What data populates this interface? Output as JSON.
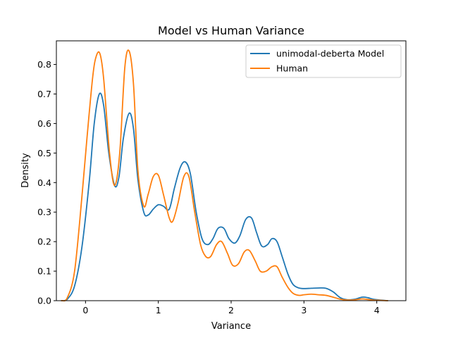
{
  "chart_data": {
    "type": "line",
    "title": "Model vs Human Variance",
    "xlabel": "Variance",
    "ylabel": "Density",
    "xlim": [
      -0.4,
      4.4
    ],
    "ylim": [
      0.0,
      0.88
    ],
    "x_ticks": [
      0,
      1,
      2,
      3,
      4
    ],
    "y_ticks": [
      0.0,
      0.1,
      0.2,
      0.3,
      0.4,
      0.5,
      0.6,
      0.7,
      0.8
    ],
    "x_tick_labels": [
      "0",
      "1",
      "2",
      "3",
      "4"
    ],
    "y_tick_labels": [
      "0.0",
      "0.1",
      "0.2",
      "0.3",
      "0.4",
      "0.5",
      "0.6",
      "0.7",
      "0.8"
    ],
    "grid": false,
    "legend_position": "top-right",
    "series": [
      {
        "name": "unimodal-deberta Model",
        "color": "#1f77b4",
        "x": [
          -0.33,
          -0.25,
          -0.15,
          -0.05,
          0.05,
          0.12,
          0.19,
          0.25,
          0.32,
          0.4,
          0.46,
          0.52,
          0.6,
          0.66,
          0.72,
          0.8,
          0.86,
          0.93,
          1.0,
          1.07,
          1.15,
          1.22,
          1.3,
          1.37,
          1.44,
          1.52,
          1.6,
          1.68,
          1.75,
          1.82,
          1.9,
          1.97,
          2.05,
          2.12,
          2.2,
          2.28,
          2.35,
          2.42,
          2.5,
          2.56,
          2.63,
          2.7,
          2.78,
          2.85,
          2.93,
          3.0,
          3.1,
          3.2,
          3.3,
          3.4,
          3.5,
          3.6,
          3.7,
          3.8,
          3.88,
          3.95,
          4.05,
          4.15
        ],
        "y": [
          0.0,
          0.005,
          0.05,
          0.18,
          0.4,
          0.6,
          0.7,
          0.66,
          0.5,
          0.39,
          0.42,
          0.55,
          0.635,
          0.58,
          0.41,
          0.3,
          0.29,
          0.31,
          0.325,
          0.32,
          0.31,
          0.38,
          0.45,
          0.47,
          0.43,
          0.3,
          0.21,
          0.19,
          0.21,
          0.245,
          0.245,
          0.21,
          0.195,
          0.22,
          0.275,
          0.28,
          0.23,
          0.185,
          0.19,
          0.21,
          0.2,
          0.15,
          0.09,
          0.055,
          0.043,
          0.041,
          0.042,
          0.043,
          0.042,
          0.03,
          0.01,
          0.003,
          0.005,
          0.012,
          0.01,
          0.005,
          0.002,
          0.0
        ]
      },
      {
        "name": "Human",
        "color": "#ff7f0e",
        "x": [
          -0.33,
          -0.25,
          -0.15,
          -0.05,
          0.02,
          0.1,
          0.15,
          0.2,
          0.25,
          0.33,
          0.4,
          0.47,
          0.54,
          0.6,
          0.66,
          0.72,
          0.8,
          0.86,
          0.93,
          1.0,
          1.07,
          1.15,
          1.2,
          1.27,
          1.35,
          1.42,
          1.5,
          1.58,
          1.65,
          1.72,
          1.8,
          1.87,
          1.95,
          2.02,
          2.1,
          2.18,
          2.25,
          2.33,
          2.4,
          2.48,
          2.56,
          2.63,
          2.7,
          2.78,
          2.85,
          2.93,
          3.0,
          3.1,
          3.2,
          3.3,
          3.4,
          3.5,
          3.6,
          3.7,
          3.8,
          3.88,
          3.95,
          4.05,
          4.15
        ],
        "y": [
          0.0,
          0.01,
          0.1,
          0.35,
          0.55,
          0.76,
          0.83,
          0.835,
          0.75,
          0.5,
          0.39,
          0.5,
          0.79,
          0.845,
          0.73,
          0.44,
          0.32,
          0.36,
          0.42,
          0.425,
          0.36,
          0.28,
          0.27,
          0.33,
          0.42,
          0.42,
          0.3,
          0.19,
          0.15,
          0.15,
          0.19,
          0.2,
          0.16,
          0.12,
          0.125,
          0.165,
          0.17,
          0.135,
          0.1,
          0.1,
          0.115,
          0.115,
          0.08,
          0.045,
          0.025,
          0.018,
          0.02,
          0.022,
          0.02,
          0.018,
          0.012,
          0.005,
          0.002,
          0.003,
          0.006,
          0.004,
          0.002,
          0.001,
          0.0
        ]
      }
    ]
  }
}
